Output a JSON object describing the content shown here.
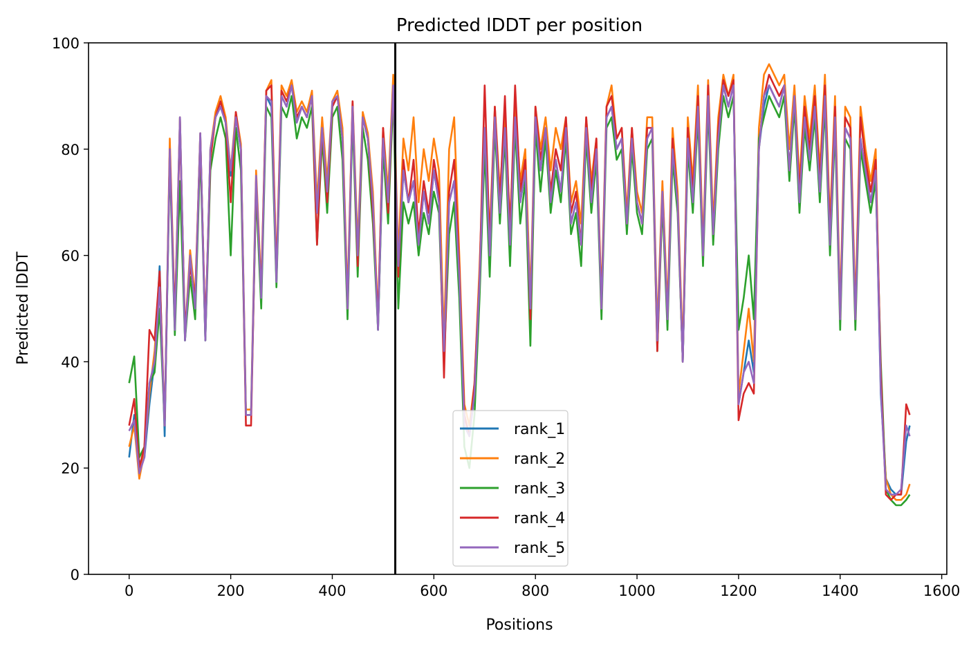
{
  "chart_data": {
    "type": "line",
    "title": "Predicted lDDT per position",
    "xlabel": "Positions",
    "ylabel": "Predicted lDDT",
    "xlim": [
      -80,
      1610
    ],
    "ylim": [
      0,
      100
    ],
    "xticks": [
      0,
      200,
      400,
      600,
      800,
      1000,
      1200,
      1400,
      1600
    ],
    "yticks": [
      0,
      20,
      40,
      60,
      80,
      100
    ],
    "grid": false,
    "legend_placement": "lower-center",
    "vertical_marker_x": 524,
    "x": [
      0,
      10,
      20,
      30,
      40,
      50,
      60,
      70,
      80,
      90,
      100,
      110,
      120,
      130,
      140,
      150,
      160,
      170,
      180,
      190,
      200,
      210,
      220,
      230,
      240,
      250,
      260,
      270,
      280,
      290,
      300,
      310,
      320,
      330,
      340,
      350,
      360,
      370,
      380,
      390,
      400,
      410,
      420,
      430,
      440,
      450,
      460,
      470,
      480,
      490,
      500,
      510,
      520,
      530,
      540,
      550,
      560,
      570,
      580,
      590,
      600,
      610,
      620,
      630,
      640,
      650,
      660,
      670,
      680,
      690,
      700,
      710,
      720,
      730,
      740,
      750,
      760,
      770,
      780,
      790,
      800,
      810,
      820,
      830,
      840,
      850,
      860,
      870,
      880,
      890,
      900,
      910,
      920,
      930,
      940,
      950,
      960,
      970,
      980,
      990,
      1000,
      1010,
      1020,
      1030,
      1040,
      1050,
      1060,
      1070,
      1080,
      1090,
      1100,
      1110,
      1120,
      1130,
      1140,
      1150,
      1160,
      1170,
      1180,
      1190,
      1200,
      1210,
      1220,
      1230,
      1240,
      1250,
      1260,
      1270,
      1280,
      1290,
      1300,
      1310,
      1320,
      1330,
      1340,
      1350,
      1360,
      1370,
      1380,
      1390,
      1400,
      1410,
      1420,
      1430,
      1440,
      1450,
      1460,
      1470,
      1480,
      1490,
      1500,
      1510,
      1520,
      1530,
      1537
    ],
    "series": [
      {
        "name": "rank_1",
        "color": "#1f77b4",
        "values": [
          22,
          30,
          21,
          22,
          32,
          40,
          58,
          26,
          80,
          46,
          86,
          44,
          60,
          50,
          83,
          44,
          80,
          86,
          88,
          85,
          75,
          86,
          80,
          30,
          30,
          74,
          52,
          90,
          88,
          55,
          90,
          88,
          92,
          85,
          88,
          86,
          90,
          68,
          84,
          72,
          88,
          90,
          82,
          49,
          88,
          60,
          86,
          82,
          70,
          46,
          82,
          70,
          92,
          56,
          76,
          70,
          74,
          62,
          72,
          66,
          76,
          70,
          40,
          70,
          74,
          56,
          30,
          26,
          34,
          55,
          82,
          60,
          86,
          68,
          84,
          62,
          86,
          70,
          76,
          48,
          86,
          76,
          84,
          70,
          78,
          72,
          84,
          66,
          70,
          62,
          84,
          70,
          80,
          50,
          86,
          88,
          80,
          82,
          66,
          82,
          70,
          66,
          82,
          84,
          44,
          72,
          48,
          80,
          70,
          40,
          82,
          70,
          88,
          60,
          90,
          64,
          82,
          92,
          88,
          92,
          32,
          38,
          44,
          38,
          80,
          88,
          92,
          90,
          88,
          92,
          76,
          90,
          70,
          86,
          78,
          88,
          72,
          90,
          62,
          86,
          48,
          84,
          82,
          48,
          82,
          76,
          70,
          76,
          34,
          18,
          16,
          15,
          15,
          25,
          28
        ]
      },
      {
        "name": "rank_2",
        "color": "#ff7f0e",
        "values": [
          24,
          28,
          18,
          23,
          34,
          42,
          55,
          28,
          82,
          48,
          86,
          45,
          61,
          52,
          83,
          45,
          80,
          87,
          90,
          86,
          76,
          87,
          81,
          31,
          31,
          76,
          54,
          91,
          93,
          57,
          92,
          90,
          93,
          87,
          89,
          87,
          91,
          70,
          86,
          74,
          89,
          91,
          84,
          52,
          89,
          62,
          87,
          83,
          72,
          48,
          84,
          72,
          94,
          60,
          82,
          76,
          86,
          70,
          80,
          74,
          82,
          76,
          44,
          80,
          86,
          60,
          32,
          28,
          36,
          58,
          84,
          64,
          88,
          72,
          86,
          66,
          88,
          74,
          80,
          52,
          88,
          80,
          86,
          76,
          84,
          80,
          86,
          70,
          74,
          66,
          86,
          74,
          82,
          52,
          88,
          92,
          82,
          84,
          68,
          84,
          72,
          68,
          86,
          86,
          46,
          74,
          50,
          84,
          72,
          42,
          86,
          74,
          92,
          62,
          93,
          66,
          86,
          94,
          90,
          94,
          34,
          42,
          50,
          40,
          84,
          94,
          96,
          94,
          92,
          94,
          80,
          92,
          74,
          90,
          82,
          92,
          76,
          94,
          66,
          90,
          50,
          88,
          86,
          50,
          88,
          80,
          74,
          80,
          36,
          18,
          15,
          14,
          14,
          15,
          17
        ]
      },
      {
        "name": "rank_3",
        "color": "#2ca02c",
        "values": [
          36,
          41,
          22,
          24,
          36,
          38,
          50,
          28,
          78,
          45,
          74,
          44,
          56,
          48,
          80,
          44,
          76,
          82,
          86,
          82,
          60,
          84,
          76,
          30,
          30,
          72,
          50,
          88,
          86,
          54,
          88,
          86,
          90,
          82,
          86,
          84,
          88,
          62,
          82,
          68,
          86,
          88,
          78,
          48,
          86,
          56,
          84,
          78,
          66,
          46,
          80,
          66,
          90,
          50,
          70,
          66,
          70,
          60,
          68,
          64,
          72,
          68,
          40,
          64,
          70,
          52,
          24,
          20,
          30,
          52,
          80,
          56,
          84,
          66,
          82,
          58,
          84,
          66,
          74,
          43,
          84,
          72,
          82,
          68,
          76,
          70,
          82,
          64,
          68,
          58,
          82,
          68,
          78,
          48,
          84,
          86,
          78,
          80,
          64,
          80,
          68,
          64,
          80,
          82,
          42,
          70,
          46,
          78,
          68,
          40,
          80,
          68,
          86,
          58,
          88,
          62,
          80,
          90,
          86,
          90,
          46,
          52,
          60,
          48,
          82,
          86,
          90,
          88,
          86,
          90,
          74,
          88,
          68,
          84,
          76,
          86,
          70,
          88,
          60,
          84,
          46,
          82,
          80,
          46,
          80,
          74,
          68,
          74,
          40,
          16,
          14,
          13,
          13,
          14,
          15
        ]
      },
      {
        "name": "rank_4",
        "color": "#d62728",
        "values": [
          28,
          33,
          20,
          24,
          46,
          44,
          57,
          28,
          80,
          48,
          84,
          46,
          58,
          52,
          82,
          46,
          78,
          86,
          89,
          85,
          70,
          87,
          80,
          28,
          28,
          74,
          53,
          91,
          92,
          56,
          91,
          89,
          92,
          86,
          88,
          86,
          90,
          62,
          84,
          70,
          88,
          90,
          82,
          50,
          89,
          58,
          86,
          82,
          68,
          48,
          84,
          68,
          92,
          56,
          78,
          70,
          78,
          64,
          74,
          68,
          78,
          72,
          37,
          72,
          78,
          58,
          30,
          26,
          36,
          56,
          92,
          62,
          88,
          70,
          90,
          64,
          92,
          72,
          78,
          48,
          88,
          78,
          84,
          72,
          80,
          76,
          86,
          68,
          72,
          62,
          86,
          72,
          82,
          50,
          88,
          90,
          82,
          84,
          66,
          84,
          70,
          66,
          84,
          84,
          42,
          72,
          48,
          82,
          70,
          40,
          84,
          72,
          90,
          60,
          92,
          64,
          84,
          93,
          90,
          93,
          29,
          34,
          36,
          34,
          80,
          90,
          94,
          92,
          90,
          92,
          76,
          90,
          72,
          88,
          80,
          90,
          74,
          92,
          64,
          88,
          48,
          86,
          84,
          48,
          86,
          78,
          72,
          78,
          38,
          15,
          14,
          15,
          15,
          32,
          30
        ]
      },
      {
        "name": "rank_5",
        "color": "#9467bd",
        "values": [
          27,
          29,
          19,
          22,
          36,
          40,
          54,
          28,
          80,
          46,
          86,
          44,
          60,
          50,
          83,
          44,
          80,
          86,
          88,
          85,
          76,
          86,
          80,
          30,
          30,
          75,
          52,
          90,
          89,
          55,
          90,
          88,
          92,
          85,
          88,
          86,
          90,
          68,
          84,
          72,
          89,
          90,
          82,
          50,
          88,
          60,
          86,
          82,
          70,
          46,
          82,
          70,
          92,
          58,
          76,
          70,
          74,
          62,
          72,
          66,
          76,
          70,
          42,
          70,
          74,
          56,
          28,
          26,
          34,
          55,
          84,
          60,
          86,
          68,
          84,
          62,
          86,
          70,
          76,
          50,
          86,
          76,
          84,
          70,
          78,
          72,
          84,
          66,
          70,
          62,
          84,
          70,
          80,
          50,
          86,
          88,
          80,
          82,
          66,
          82,
          70,
          66,
          82,
          84,
          44,
          72,
          48,
          80,
          70,
          40,
          82,
          70,
          88,
          60,
          90,
          64,
          82,
          92,
          88,
          92,
          32,
          38,
          40,
          36,
          80,
          90,
          92,
          90,
          88,
          92,
          76,
          90,
          70,
          86,
          78,
          88,
          72,
          90,
          62,
          86,
          48,
          84,
          82,
          48,
          82,
          76,
          70,
          76,
          35,
          16,
          15,
          15,
          16,
          28,
          26
        ]
      }
    ]
  }
}
